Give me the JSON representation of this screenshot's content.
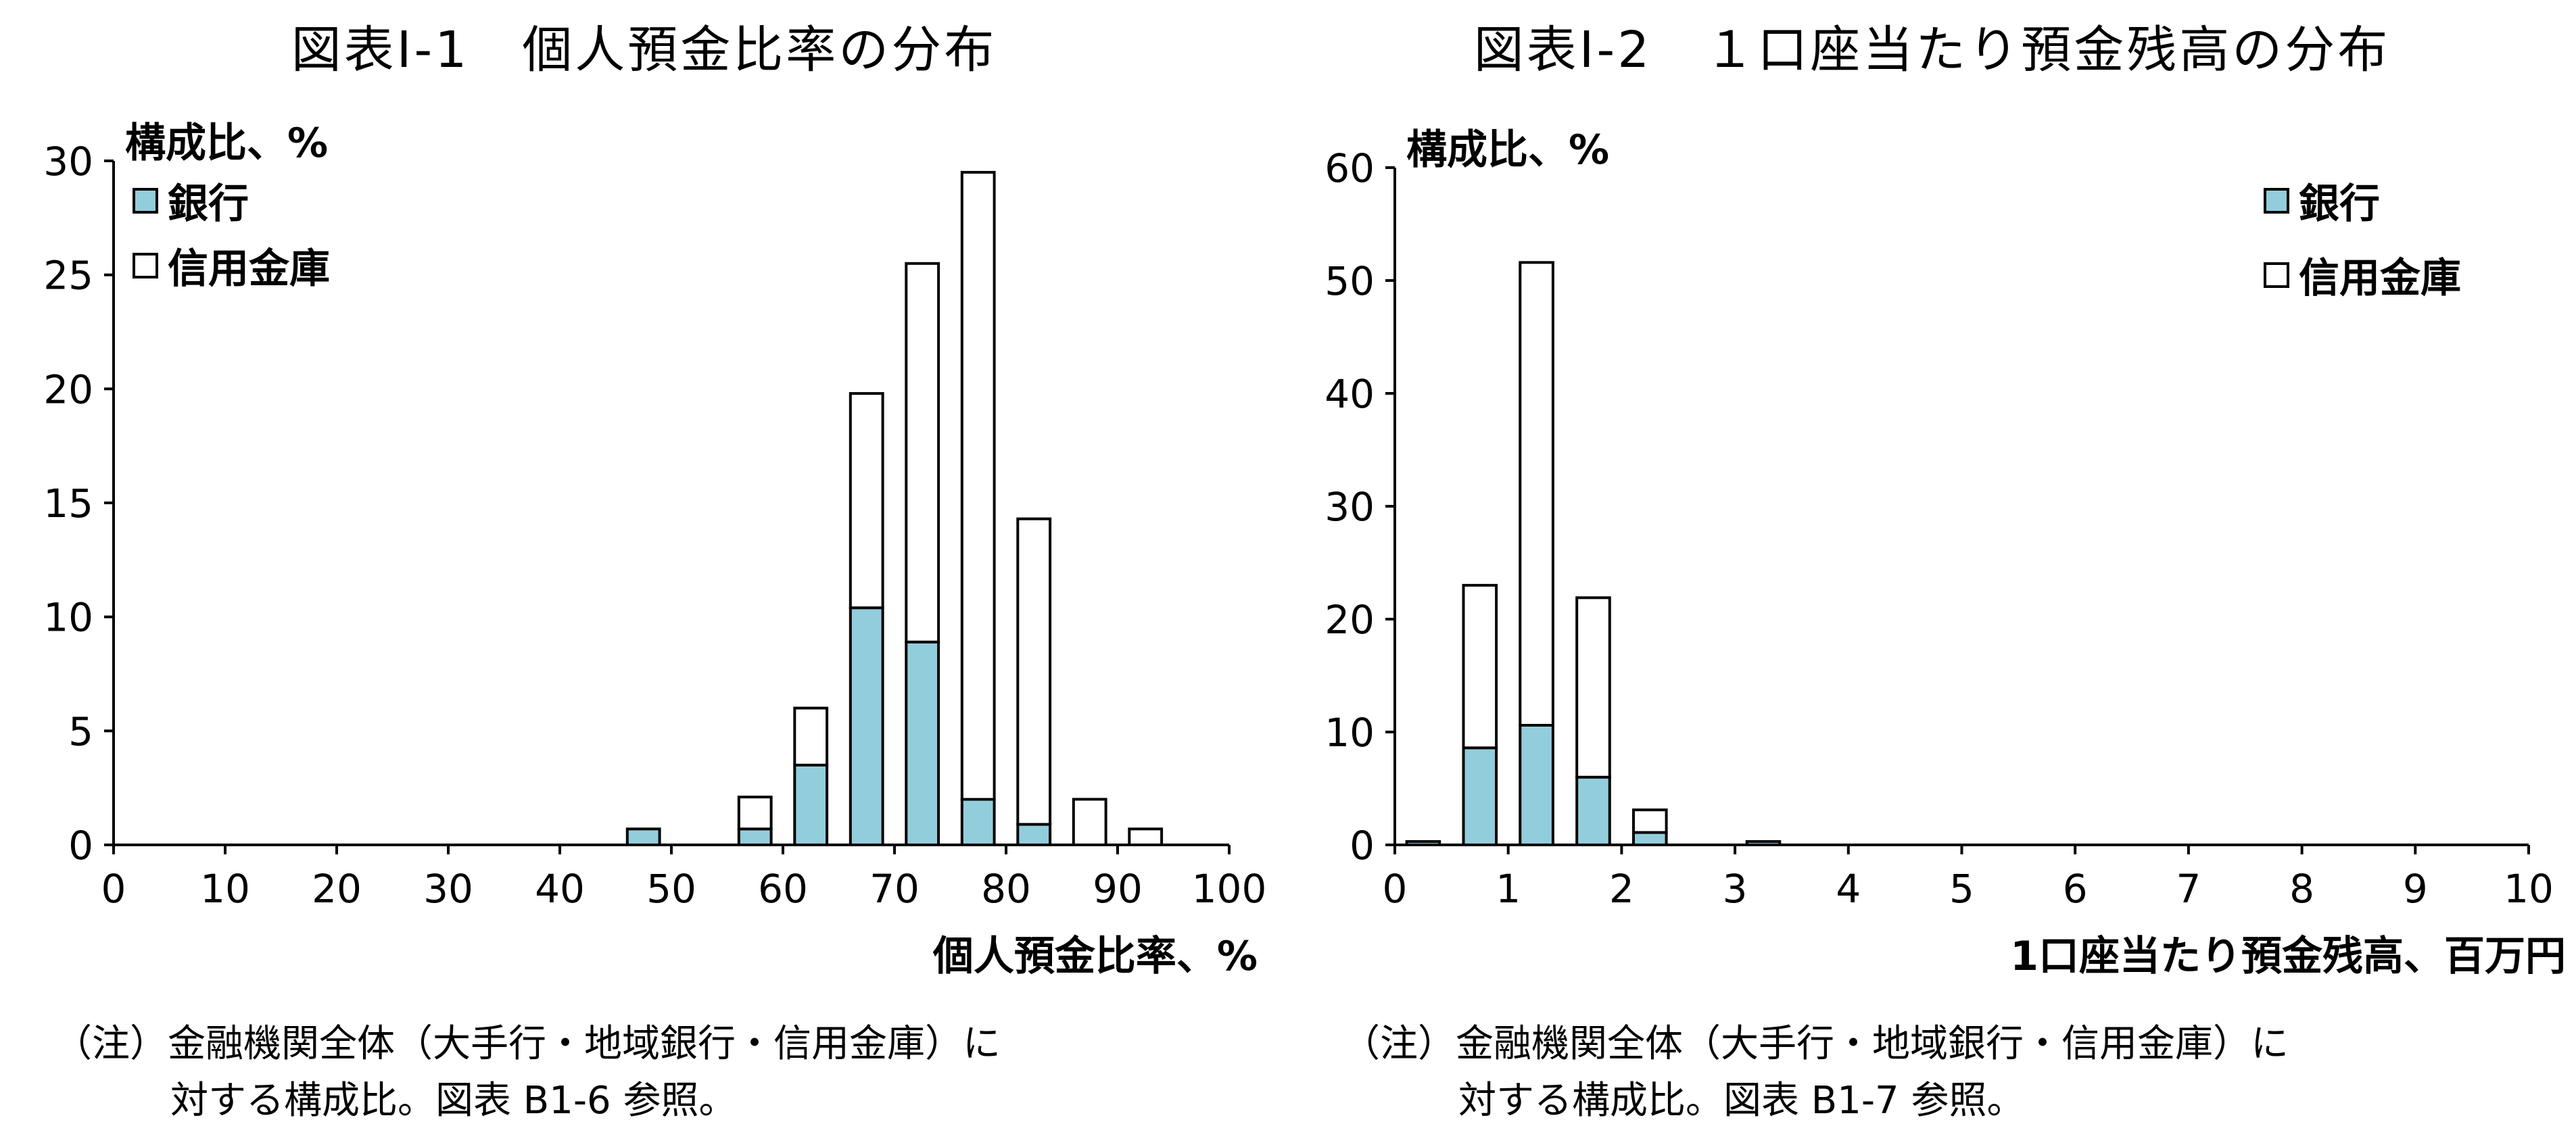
{
  "colors": {
    "bank": "#92cddc",
    "shinkin": "#ffffff",
    "axis": "#000000"
  },
  "panels": [
    {
      "title": "図表Ⅰ-1　個人預金比率の分布",
      "note_line1": "（注）金融機関全体（大手行・地域銀行・信用金庫）に",
      "note_line2": "対する構成比。図表 B1-6 参照。"
    },
    {
      "title": "図表Ⅰ-2　１口座当たり預金残高の分布",
      "note_line1": "（注）金融機関全体（大手行・地域銀行・信用金庫）に",
      "note_line2": "対する構成比。図表 B1-7 参照。"
    }
  ],
  "chart_data": [
    {
      "type": "bar",
      "stacked": true,
      "title": "図表Ⅰ-1　個人預金比率の分布",
      "xlabel": "個人預金比率、%",
      "ylabel": "構成比、%",
      "xlim": [
        0,
        100
      ],
      "ylim": [
        0,
        30
      ],
      "xticks": [
        "0",
        "10",
        "20",
        "30",
        "40",
        "50",
        "60",
        "70",
        "80",
        "90",
        "100"
      ],
      "yticks": [
        "0",
        "5",
        "10",
        "15",
        "20",
        "25",
        "30"
      ],
      "legend_position": "top-left",
      "bin_width": 5,
      "x": [
        47.5,
        57.5,
        62.5,
        67.5,
        72.5,
        77.5,
        82.5,
        87.5,
        92.5
      ],
      "series": [
        {
          "name": "銀行",
          "color": "#92cddc",
          "values": [
            0.7,
            0.7,
            3.5,
            10.4,
            8.9,
            2.0,
            0.9,
            0,
            0
          ]
        },
        {
          "name": "信用金庫",
          "color": "#ffffff",
          "values": [
            0,
            1.4,
            2.5,
            9.4,
            16.6,
            27.5,
            13.4,
            2.0,
            0.7
          ]
        }
      ]
    },
    {
      "type": "bar",
      "stacked": true,
      "title": "図表Ⅰ-2　１口座当たり預金残高の分布",
      "xlabel": "1口座当たり預金残高、百万円",
      "ylabel": "構成比、%",
      "xlim": [
        0,
        10
      ],
      "ylim": [
        0,
        60
      ],
      "xticks": [
        "0",
        "1",
        "2",
        "3",
        "4",
        "5",
        "6",
        "7",
        "8",
        "9",
        "10"
      ],
      "yticks": [
        "0",
        "10",
        "20",
        "30",
        "40",
        "50",
        "60"
      ],
      "legend_position": "top-right",
      "bin_width": 0.5,
      "x": [
        0.25,
        0.75,
        1.25,
        1.75,
        2.25,
        3.25
      ],
      "series": [
        {
          "name": "銀行",
          "color": "#92cddc",
          "values": [
            0.3,
            8.6,
            10.6,
            6.0,
            1.1,
            0.3
          ]
        },
        {
          "name": "信用金庫",
          "color": "#ffffff",
          "values": [
            0,
            14.4,
            41.0,
            15.9,
            2.0,
            0
          ]
        }
      ]
    }
  ]
}
